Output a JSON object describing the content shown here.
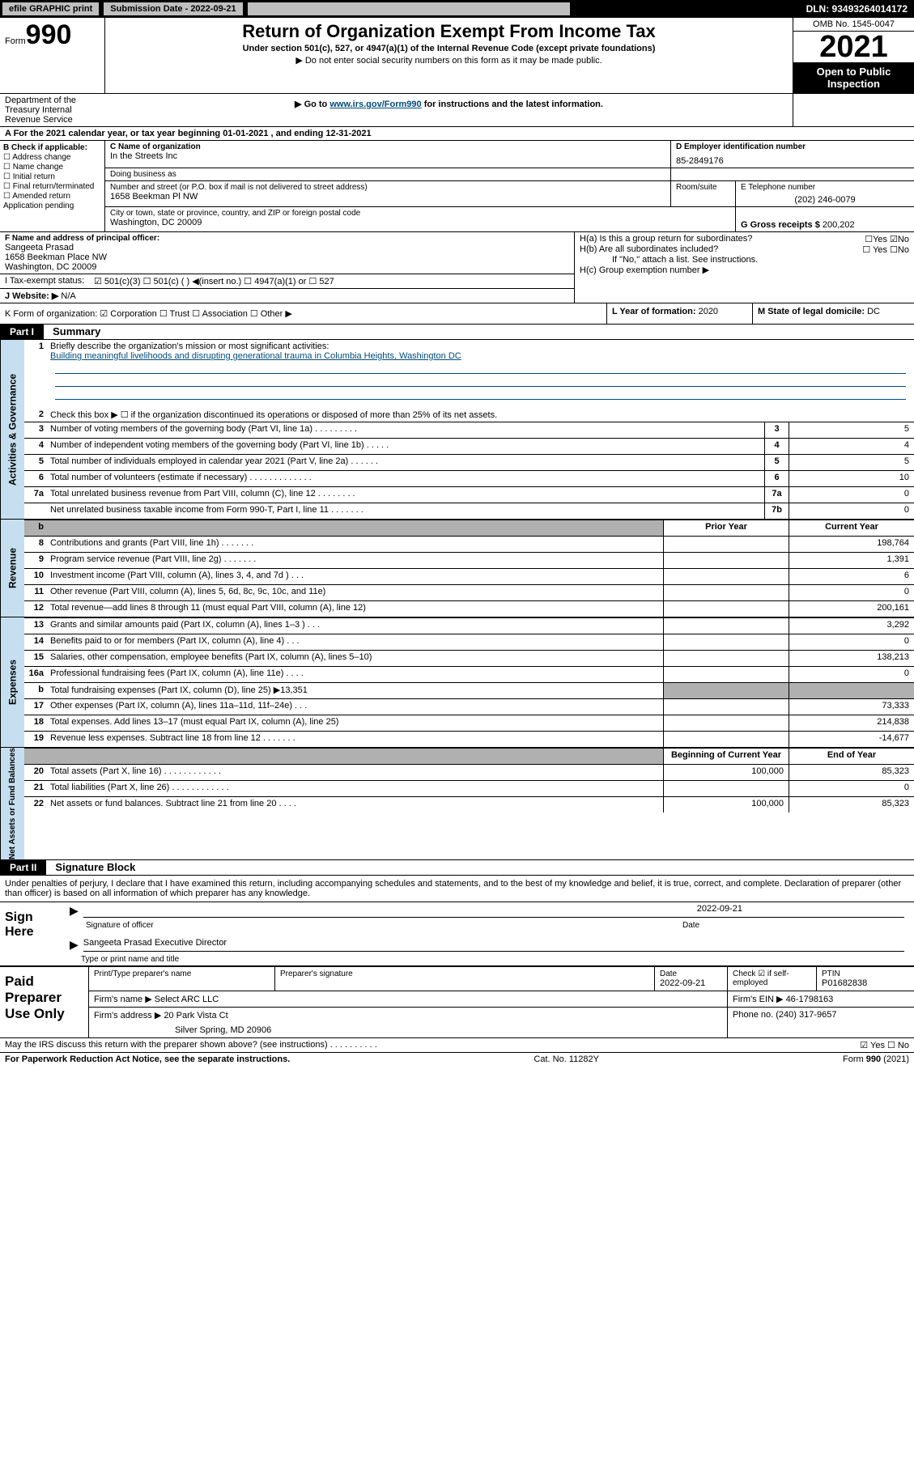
{
  "topbar": {
    "efile": "efile GRAPHIC print",
    "sub_date_label": "Submission Date - 2022-09-21",
    "dln": "DLN: 93493264014172"
  },
  "header": {
    "form_label": "Form",
    "form_num": "990",
    "dept": "Department of the Treasury Internal Revenue Service",
    "title": "Return of Organization Exempt From Income Tax",
    "subtitle": "Under section 501(c), 527, or 4947(a)(1) of the Internal Revenue Code (except private foundations)",
    "note1": "▶ Do not enter social security numbers on this form as it may be made public.",
    "note2_pre": "▶ Go to ",
    "note2_link": "www.irs.gov/Form990",
    "note2_post": " for instructions and the latest information.",
    "omb": "OMB No. 1545-0047",
    "year": "2021",
    "open": "Open to Public Inspection"
  },
  "section_a": "A For the 2021 calendar year, or tax year beginning 01-01-2021   , and ending 12-31-2021",
  "b": {
    "label": "B Check if applicable:",
    "items": [
      "☐ Address change",
      "☐ Name change",
      "☐ Initial return",
      "☐ Final return/terminated",
      "☐ Amended return",
      "Application pending"
    ]
  },
  "c": {
    "name_label": "C Name of organization",
    "name": "In the Streets Inc",
    "dba_label": "Doing business as",
    "dba": "",
    "addr_label": "Number and street (or P.O. box if mail is not delivered to street address)",
    "addr": "1658 Beekman Pl NW",
    "room_label": "Room/suite",
    "city_label": "City or town, state or province, country, and ZIP or foreign postal code",
    "city": "Washington, DC  20009"
  },
  "d": {
    "label": "D Employer identification number",
    "val": "85-2849176"
  },
  "e": {
    "label": "E Telephone number",
    "val": "(202) 246-0079"
  },
  "g": {
    "label": "G Gross receipts $",
    "val": "200,202"
  },
  "f": {
    "label": "F  Name and address of principal officer:",
    "name": "Sangeeta Prasad",
    "addr1": "1658 Beekman Place NW",
    "addr2": "Washington, DC  20009"
  },
  "h": {
    "a": "H(a)  Is this a group return for subordinates?",
    "a_ans": "☐Yes ☑No",
    "b": "H(b)  Are all subordinates included?",
    "b_ans": "☐ Yes ☐No",
    "b_note": "If \"No,\" attach a list. See instructions.",
    "c": "H(c)  Group exemption number ▶"
  },
  "i": {
    "label": "I   Tax-exempt status:",
    "opts": "☑ 501(c)(3)   ☐  501(c) (  ) ◀(insert no.)     ☐ 4947(a)(1) or  ☐ 527"
  },
  "j": {
    "label": "J  Website: ▶",
    "val": "N/A"
  },
  "k": {
    "label": "K Form of organization:  ☑ Corporation ☐ Trust ☐ Association ☐ Other ▶"
  },
  "l": {
    "label": "L Year of formation:",
    "val": "2020"
  },
  "m": {
    "label": "M State of legal domicile:",
    "val": "DC"
  },
  "part1": {
    "hdr": "Part I",
    "title": "Summary"
  },
  "summary": {
    "q1": "Briefly describe the organization's mission or most significant activities:",
    "mission": "Building meaningful livelihoods and disrupting generational trauma in Columbia Heights, Washington DC",
    "q2": "Check this box ▶ ☐  if the organization discontinued its operations or disposed of more than 25% of its net assets.",
    "lines": [
      {
        "n": "3",
        "t": "Number of voting members of the governing body (Part VI, line 1a)   .   .   .   .   .   .   .   .   .",
        "box": "3",
        "v": "5"
      },
      {
        "n": "4",
        "t": "Number of independent voting members of the governing body (Part VI, line 1b)  .   .   .   .   .",
        "box": "4",
        "v": "4"
      },
      {
        "n": "5",
        "t": "Total number of individuals employed in calendar year 2021 (Part V, line 2a)  .   .   .   .   .   .",
        "box": "5",
        "v": "5"
      },
      {
        "n": "6",
        "t": "Total number of volunteers (estimate if necessary)  .   .   .   .   .   .   .   .   .   .   .   .   .",
        "box": "6",
        "v": "10"
      },
      {
        "n": "7a",
        "t": "Total unrelated business revenue from Part VIII, column (C), line 12  .   .   .   .   .   .   .   .",
        "box": "7a",
        "v": "0"
      },
      {
        "n": "",
        "t": "Net unrelated business taxable income from Form 990-T, Part I, line 11  .   .   .   .   .   .   .",
        "box": "7b",
        "v": "0"
      }
    ],
    "col_prior": "Prior Year",
    "col_curr": "Current Year",
    "revenue": [
      {
        "n": "8",
        "t": "Contributions and grants (Part VIII, line 1h)   .   .   .   .   .   .   .",
        "p": "",
        "c": "198,764"
      },
      {
        "n": "9",
        "t": "Program service revenue (Part VIII, line 2g)   .   .   .   .   .   .   .",
        "p": "",
        "c": "1,391"
      },
      {
        "n": "10",
        "t": "Investment income (Part VIII, column (A), lines 3, 4, and 7d )   .   .   .",
        "p": "",
        "c": "6"
      },
      {
        "n": "11",
        "t": "Other revenue (Part VIII, column (A), lines 5, 6d, 8c, 9c, 10c, and 11e)",
        "p": "",
        "c": "0"
      },
      {
        "n": "12",
        "t": "Total revenue—add lines 8 through 11 (must equal Part VIII, column (A), line 12)",
        "p": "",
        "c": "200,161"
      }
    ],
    "expenses": [
      {
        "n": "13",
        "t": "Grants and similar amounts paid (Part IX, column (A), lines 1–3 )   .   .   .",
        "p": "",
        "c": "3,292"
      },
      {
        "n": "14",
        "t": "Benefits paid to or for members (Part IX, column (A), line 4)   .   .   .",
        "p": "",
        "c": "0"
      },
      {
        "n": "15",
        "t": "Salaries, other compensation, employee benefits (Part IX, column (A), lines 5–10)",
        "p": "",
        "c": "138,213"
      },
      {
        "n": "16a",
        "t": "Professional fundraising fees (Part IX, column (A), line 11e)   .   .   .   .",
        "p": "",
        "c": "0"
      },
      {
        "n": "b",
        "t": "Total fundraising expenses (Part IX, column (D), line 25) ▶13,351",
        "p": "SHADE",
        "c": "SHADE"
      },
      {
        "n": "17",
        "t": "Other expenses (Part IX, column (A), lines 11a–11d, 11f–24e)   .   .   .",
        "p": "",
        "c": "73,333"
      },
      {
        "n": "18",
        "t": "Total expenses. Add lines 13–17 (must equal Part IX, column (A), line 25)",
        "p": "",
        "c": "214,838"
      },
      {
        "n": "19",
        "t": "Revenue less expenses. Subtract line 18 from line 12   .   .   .   .   .   .   .",
        "p": "",
        "c": "-14,677"
      }
    ],
    "col_begin": "Beginning of Current Year",
    "col_end": "End of Year",
    "netassets": [
      {
        "n": "20",
        "t": "Total assets (Part X, line 16)   .   .   .   .   .   .   .   .   .   .   .   .",
        "p": "100,000",
        "c": "85,323"
      },
      {
        "n": "21",
        "t": "Total liabilities (Part X, line 26)   .   .   .   .   .   .   .   .   .   .   .   .",
        "p": "",
        "c": "0"
      },
      {
        "n": "22",
        "t": "Net assets or fund balances. Subtract line 21 from line 20   .   .   .   .",
        "p": "100,000",
        "c": "85,323"
      }
    ]
  },
  "side_labels": {
    "ag": "Activities & Governance",
    "rev": "Revenue",
    "exp": "Expenses",
    "na": "Net Assets or Fund Balances"
  },
  "part2": {
    "hdr": "Part II",
    "title": "Signature Block"
  },
  "sig": {
    "perjury": "Under penalties of perjury, I declare that I have examined this return, including accompanying schedules and statements, and to the best of my knowledge and belief, it is true, correct, and complete. Declaration of preparer (other than officer) is based on all information of which preparer has any knowledge.",
    "sign_here": "Sign Here",
    "sig_officer": "Signature of officer",
    "date_label": "Date",
    "date": "2022-09-21",
    "name_title": "Sangeeta Prasad  Executive Director",
    "name_title_label": "Type or print name and title"
  },
  "paid": {
    "label": "Paid Preparer Use Only",
    "h_name": "Print/Type preparer's name",
    "h_sig": "Preparer's signature",
    "h_date": "Date",
    "date": "2022-09-21",
    "h_check": "Check ☑ if self-employed",
    "h_ptin": "PTIN",
    "ptin": "P01682838",
    "firm_name_l": "Firm's name   ▶",
    "firm_name": "Select ARC LLC",
    "firm_ein_l": "Firm's EIN ▶",
    "firm_ein": "46-1798163",
    "firm_addr_l": "Firm's address ▶",
    "firm_addr1": "20 Park Vista Ct",
    "firm_addr2": "Silver Spring, MD  20906",
    "phone_l": "Phone no.",
    "phone": "(240) 317-9657"
  },
  "footer": {
    "may": "May the IRS discuss this return with the preparer shown above? (see instructions)   .   .   .   .   .   .   .   .   .   .",
    "ans": "☑ Yes ☐ No",
    "pra": "For Paperwork Reduction Act Notice, see the separate instructions.",
    "cat": "Cat. No. 11282Y",
    "form": "Form 990 (2021)"
  }
}
